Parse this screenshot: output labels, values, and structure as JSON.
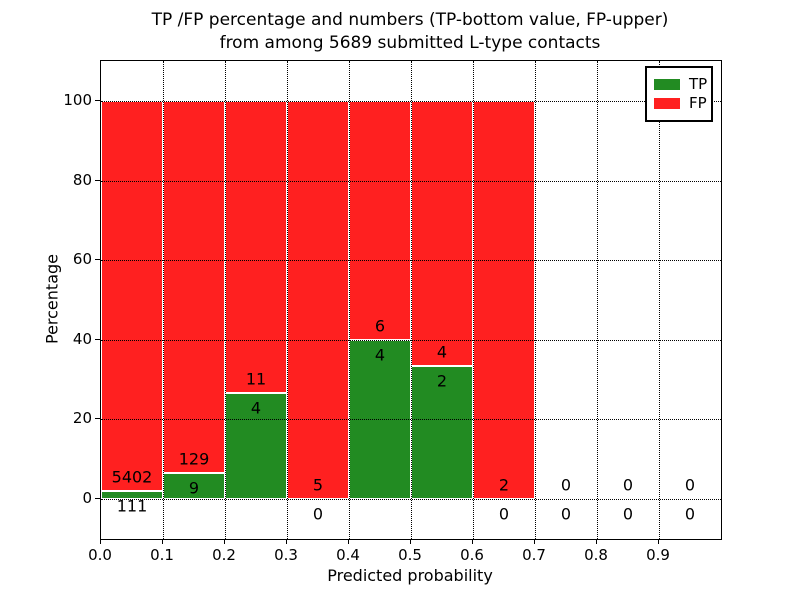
{
  "title": {
    "line1": "TP /FP percentage and numbers (TP-bottom value, FP-upper)",
    "line2": "from among 5689 submitted L-type contacts"
  },
  "chart_data": {
    "type": "bar",
    "stacked": true,
    "title": "TP /FP percentage and numbers (TP-bottom value, FP-upper) from among 5689 submitted L-type contacts",
    "xlabel": "Predicted probability",
    "ylabel": "Percentage",
    "total_submitted": 5689,
    "xlim": [
      0.0,
      1.0
    ],
    "ylim": [
      -10,
      110
    ],
    "x_ticks": [
      "0.0",
      "0.1",
      "0.2",
      "0.3",
      "0.4",
      "0.5",
      "0.6",
      "0.7",
      "0.8",
      "0.9"
    ],
    "x_tick_values": [
      0.0,
      0.1,
      0.2,
      0.3,
      0.4,
      0.5,
      0.6,
      0.7,
      0.8,
      0.9
    ],
    "y_ticks": [
      0,
      20,
      40,
      60,
      80,
      100
    ],
    "grid": "dotted",
    "bin_width": 0.1,
    "categories": [
      "0.0-0.1",
      "0.1-0.2",
      "0.2-0.3",
      "0.3-0.4",
      "0.4-0.5",
      "0.5-0.6",
      "0.6-0.7",
      "0.7-0.8",
      "0.8-0.9",
      "0.9-1.0"
    ],
    "series": [
      {
        "name": "TP",
        "color": "#228b22",
        "counts": [
          111,
          9,
          4,
          0,
          4,
          2,
          0,
          0,
          0,
          0
        ],
        "percent": [
          2.01,
          6.52,
          26.67,
          0,
          40.0,
          33.33,
          0,
          0,
          0,
          0
        ]
      },
      {
        "name": "FP",
        "color": "#ff2020",
        "counts": [
          5402,
          129,
          11,
          5,
          6,
          4,
          2,
          0,
          0,
          0
        ],
        "percent": [
          97.99,
          93.48,
          73.33,
          100.0,
          60.0,
          66.67,
          100.0,
          0,
          0,
          0
        ]
      }
    ],
    "legend": {
      "position": "upper right"
    }
  }
}
